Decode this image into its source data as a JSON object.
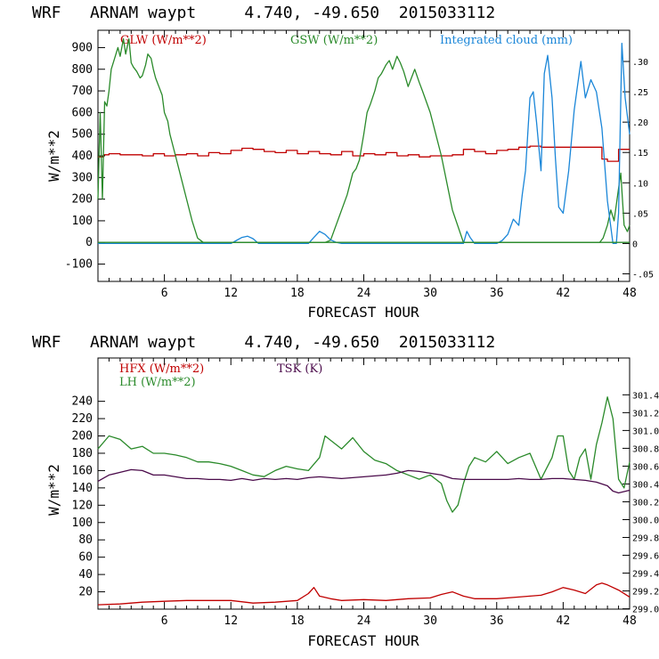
{
  "chart_data": [
    {
      "type": "line",
      "title": "WRF   ARNAM waypt     4.740, -49.650  2015033112",
      "xlabel": "FORECAST HOUR",
      "ylabel": "W/m**2",
      "xlim": [
        0,
        48
      ],
      "ylim": [
        -180,
        980
      ],
      "y2lim": [
        -0.0625,
        0.3514
      ],
      "x_ticks": [
        "6",
        "12",
        "18",
        "24",
        "30",
        "36",
        "42",
        "48"
      ],
      "y_ticks": [
        "-100",
        "0",
        "100",
        "200",
        "300",
        "400",
        "500",
        "600",
        "700",
        "800",
        "900"
      ],
      "y2_ticks": [
        "-.05",
        "0",
        ".05",
        ".10",
        ".15",
        ".20",
        ".25",
        ".30"
      ],
      "series": [
        {
          "name": "GLW (W/m**2)",
          "color": "#c00000",
          "axis": "left",
          "step": true,
          "x": [
            0,
            0.5,
            1,
            2,
            3,
            4,
            5,
            6,
            7,
            8,
            9,
            10,
            11,
            12,
            13,
            14,
            15,
            16,
            17,
            18,
            19,
            20,
            21,
            22,
            23,
            24,
            25,
            26,
            27,
            28,
            29,
            30,
            31,
            32,
            33,
            34,
            35,
            36,
            37,
            38,
            39,
            40,
            41,
            42,
            43,
            44,
            45,
            45.5,
            46,
            47,
            48
          ],
          "y": [
            395,
            405,
            410,
            405,
            405,
            400,
            410,
            400,
            405,
            410,
            400,
            415,
            410,
            425,
            435,
            430,
            420,
            415,
            425,
            410,
            420,
            410,
            405,
            420,
            400,
            410,
            405,
            415,
            400,
            405,
            395,
            400,
            400,
            405,
            430,
            420,
            410,
            425,
            430,
            440,
            445,
            440,
            440,
            440,
            440,
            440,
            440,
            385,
            375,
            430,
            430
          ]
        },
        {
          "name": "GSW (W/m**2)",
          "color": "#2a8a2a",
          "axis": "left",
          "step": false,
          "x": [
            0,
            0.2,
            0.4,
            0.6,
            0.8,
            1,
            1.2,
            1.5,
            1.8,
            2,
            2.3,
            2.5,
            2.8,
            3,
            3.2,
            3.5,
            3.8,
            4,
            4.3,
            4.5,
            4.8,
            5,
            5.2,
            5.5,
            5.8,
            6,
            6.3,
            6.5,
            7,
            7.5,
            8,
            8.5,
            9,
            9.5,
            10,
            11,
            12,
            13,
            14,
            15,
            16,
            17,
            18,
            19,
            20,
            20.5,
            21,
            21.5,
            22,
            22.5,
            23,
            23.3,
            23.6,
            24,
            24.3,
            24.6,
            25,
            25.3,
            25.6,
            26,
            26.3,
            26.6,
            27,
            27.3,
            27.6,
            28,
            28.3,
            28.6,
            29,
            29.3,
            30,
            31,
            32,
            33,
            34,
            35,
            36,
            37,
            38,
            39,
            40,
            41,
            42,
            43,
            44,
            45,
            45.3,
            45.6,
            46,
            46.3,
            46.6,
            47,
            47.2,
            47.5,
            47.8,
            48
          ],
          "y": [
            200,
            600,
            200,
            650,
            630,
            700,
            800,
            850,
            900,
            860,
            940,
            870,
            940,
            830,
            810,
            790,
            760,
            770,
            820,
            870,
            850,
            800,
            760,
            720,
            680,
            600,
            560,
            500,
            400,
            300,
            200,
            100,
            20,
            0,
            0,
            0,
            0,
            0,
            0,
            0,
            0,
            0,
            0,
            0,
            0,
            0,
            10,
            80,
            150,
            220,
            320,
            340,
            380,
            500,
            600,
            640,
            700,
            760,
            780,
            820,
            840,
            800,
            860,
            830,
            790,
            720,
            760,
            800,
            740,
            700,
            600,
            400,
            150,
            0,
            0,
            0,
            0,
            0,
            0,
            0,
            0,
            0,
            0,
            0,
            0,
            0,
            0,
            20,
            80,
            150,
            100,
            250,
            320,
            80,
            50,
            80
          ]
        },
        {
          "name": "Integrated cloud (mm)",
          "color": "#1a86d8",
          "axis": "right",
          "step": false,
          "x": [
            0,
            12,
            12.5,
            13,
            13.5,
            14,
            14.5,
            19,
            19.5,
            20,
            20.5,
            21,
            21.5,
            22,
            33,
            33.3,
            33.6,
            34,
            36,
            36.5,
            37,
            37.5,
            38,
            38.3,
            38.6,
            39,
            39.3,
            39.6,
            40,
            40.3,
            40.6,
            41,
            41.3,
            41.6,
            42,
            42.5,
            43,
            43.3,
            43.6,
            44,
            44.5,
            45,
            45.5,
            46,
            46.5,
            46.8,
            47,
            47.3,
            47.6,
            48
          ],
          "y": [
            0,
            0,
            0.005,
            0.01,
            0.012,
            0.008,
            0,
            0,
            0.01,
            0.02,
            0.015,
            0.006,
            0.002,
            0,
            0,
            0.02,
            0.01,
            0,
            0,
            0.005,
            0.015,
            0.04,
            0.03,
            0.08,
            0.12,
            0.24,
            0.25,
            0.2,
            0.12,
            0.28,
            0.31,
            0.24,
            0.14,
            0.06,
            0.05,
            0.12,
            0.22,
            0.26,
            0.3,
            0.24,
            0.27,
            0.25,
            0.19,
            0.07,
            0,
            0,
            0.05,
            0.33,
            0.24,
            0.18
          ]
        },
        {
          "name": "",
          "color": "#2a8a2a",
          "axis": "left",
          "step": false,
          "x": [
            0,
            48
          ],
          "y": [
            0,
            0
          ]
        }
      ]
    },
    {
      "type": "line",
      "title": "WRF   ARNAM waypt     4.740, -49.650  2015033112",
      "xlabel": "FORECAST HOUR",
      "ylabel": "W/m**2",
      "xlim": [
        0,
        48
      ],
      "ylim": [
        0,
        290
      ],
      "y2lim": [
        298.996,
        301.813
      ],
      "x_ticks": [
        "6",
        "12",
        "18",
        "24",
        "30",
        "36",
        "42",
        "48"
      ],
      "y_ticks": [
        "20",
        "40",
        "60",
        "80",
        "100",
        "120",
        "140",
        "160",
        "180",
        "200",
        "220",
        "240"
      ],
      "y2_ticks": [
        "299.0",
        "299.2",
        "299.4",
        "299.6",
        "299.8",
        "300.0",
        "300.2",
        "300.4",
        "300.6",
        "300.8",
        "301.0",
        "301.2",
        "301.4"
      ],
      "series": [
        {
          "name": "HFX (W/m**2)",
          "color": "#c00000",
          "axis": "left",
          "step": false,
          "x": [
            0,
            2,
            4,
            6,
            8,
            10,
            12,
            14,
            16,
            18,
            19,
            19.5,
            20,
            21,
            22,
            24,
            26,
            28,
            30,
            31,
            32,
            33,
            34,
            36,
            38,
            40,
            41,
            42,
            43,
            44,
            45,
            45.5,
            46,
            47,
            48
          ],
          "y": [
            5,
            6,
            8,
            9,
            10,
            10,
            10,
            7,
            8,
            10,
            18,
            25,
            15,
            12,
            10,
            11,
            10,
            12,
            13,
            17,
            20,
            15,
            12,
            12,
            14,
            16,
            20,
            25,
            22,
            18,
            28,
            30,
            28,
            22,
            14
          ]
        },
        {
          "name": "LH (W/m**2)",
          "color": "#2a8a2a",
          "axis": "left",
          "step": false,
          "x": [
            0,
            1,
            2,
            3,
            4,
            5,
            6,
            7,
            8,
            9,
            10,
            11,
            12,
            13,
            14,
            15,
            16,
            17,
            18,
            19,
            20,
            20.5,
            21,
            22,
            23,
            24,
            25,
            26,
            27,
            28,
            29,
            30,
            31,
            31.5,
            32,
            32.5,
            33,
            33.5,
            34,
            35,
            36,
            37,
            38,
            39,
            40,
            41,
            41.5,
            42,
            42.5,
            43,
            43.5,
            44,
            44.5,
            45,
            45.5,
            46,
            46.5,
            47,
            47.5,
            48
          ],
          "y": [
            185,
            200,
            196,
            185,
            188,
            180,
            180,
            178,
            175,
            170,
            170,
            168,
            165,
            160,
            155,
            153,
            160,
            165,
            162,
            160,
            175,
            200,
            195,
            185,
            198,
            182,
            172,
            168,
            160,
            155,
            150,
            155,
            145,
            125,
            112,
            120,
            145,
            165,
            175,
            170,
            182,
            168,
            175,
            180,
            150,
            175,
            200,
            200,
            160,
            150,
            175,
            185,
            150,
            190,
            215,
            245,
            220,
            150,
            140,
            170
          ]
        },
        {
          "name": "TSK (K)",
          "color": "#4a0a4a",
          "axis": "right",
          "step": false,
          "x": [
            0,
            1,
            2,
            3,
            4,
            5,
            6,
            7,
            8,
            9,
            10,
            11,
            12,
            13,
            14,
            15,
            16,
            17,
            18,
            19,
            20,
            21,
            22,
            23,
            24,
            25,
            26,
            27,
            28,
            29,
            30,
            31,
            32,
            33,
            34,
            35,
            36,
            37,
            38,
            39,
            40,
            41,
            42,
            43,
            44,
            45,
            46,
            46.5,
            47,
            48
          ],
          "y": [
            300.43,
            300.5,
            300.53,
            300.56,
            300.55,
            300.5,
            300.5,
            300.48,
            300.46,
            300.46,
            300.45,
            300.45,
            300.44,
            300.46,
            300.44,
            300.46,
            300.45,
            300.46,
            300.45,
            300.47,
            300.48,
            300.47,
            300.46,
            300.47,
            300.48,
            300.49,
            300.5,
            300.52,
            300.55,
            300.54,
            300.52,
            300.5,
            300.46,
            300.45,
            300.45,
            300.45,
            300.45,
            300.45,
            300.46,
            300.45,
            300.45,
            300.46,
            300.46,
            300.45,
            300.44,
            300.42,
            300.38,
            300.32,
            300.3,
            300.33
          ]
        }
      ]
    }
  ]
}
